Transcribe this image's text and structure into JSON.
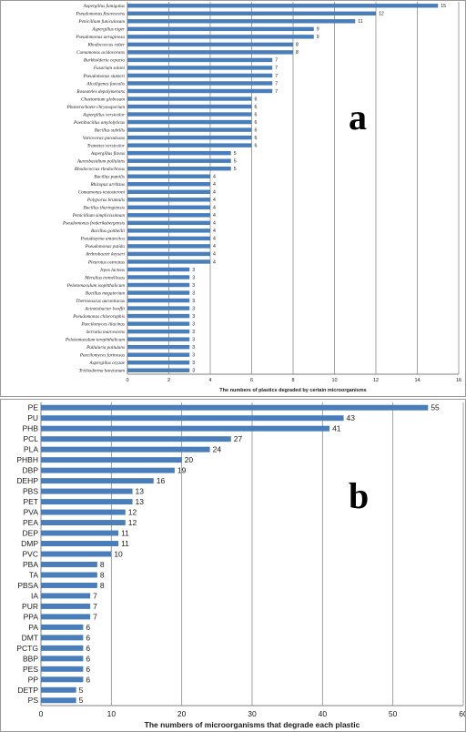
{
  "panel_labels": {
    "a": "a",
    "b": "b"
  },
  "chart_data": [
    {
      "type": "bar",
      "orientation": "horizontal",
      "panel": "a",
      "categories": [
        "Aspergillus fumigatus",
        "Pseudomonas fluorescens",
        "Penicillium funiculosum",
        "Aspergillus niger",
        "Pseudomonas aeruginosa",
        "Rhodococcus ruber",
        "Comamonas acidovorans",
        "Burkholderia cepacia",
        "Fusarium solani",
        "Pseudomonas stutzeri",
        "Alcaligenes faecalis",
        "Roseateles depolymerans",
        "Chaetomium globosum",
        "Phanerochaete chrysosporium",
        "Aspergillus versicolor",
        "Paenibacillus amylolyticus",
        "Bacillus subtilis",
        "Variovorax paradoxus",
        "Trametes versicolor",
        "Aspergillus flavus",
        "Aureobasidium pullulans",
        "Rhodococcus rhodochrous",
        "Bacillus pumilis",
        "Rhizopus arrhizus",
        "Comamonas testosteroni",
        "Polyporus brumalis",
        "Bacillus thuringiensis",
        "Penicillium simplicissimum",
        "Pseudomonas frederiksbergensis",
        "Bacillus gottheilii",
        "Pseudozyma antarctica",
        "Pseudomonas putida",
        "Arthrobacter keyseri",
        "Pleurotus ostreatus",
        "Irpex lacteus",
        "Merulius tremellosus",
        "Pelotomaculum isophthalicum",
        "Bacillus megaterium",
        "Thermoascus aurantiacus",
        "Acinetobacter lwoffii",
        "Pseudomonas chlororaphis",
        "Paecilomyces lilacinus",
        "Serratia marcescens",
        "Pelotomaculum terephthalicum",
        "Pullularia pullulans",
        "Paecilomyces farinosus",
        "Aspergillus oryzae",
        "Trichoderma harzianum"
      ],
      "values": [
        15,
        12,
        11,
        9,
        9,
        8,
        8,
        7,
        7,
        7,
        7,
        7,
        6,
        6,
        6,
        6,
        6,
        6,
        6,
        5,
        5,
        5,
        4,
        4,
        4,
        4,
        4,
        4,
        4,
        4,
        4,
        4,
        4,
        4,
        3,
        3,
        3,
        3,
        3,
        3,
        3,
        3,
        3,
        3,
        3,
        3,
        3,
        3
      ],
      "xlabel": "The numbers of plastics degraded by certain microorganisms",
      "xticks": [
        0,
        2,
        4,
        6,
        8,
        10,
        12,
        14,
        16
      ],
      "xlim": [
        0,
        16
      ],
      "grid": true,
      "bar_color": "#4a7ebb"
    },
    {
      "type": "bar",
      "orientation": "horizontal",
      "panel": "b",
      "categories": [
        "PE",
        "PU",
        "PHB",
        "PCL",
        "PLA",
        "PHBH",
        "DBP",
        "DEHP",
        "PBS",
        "PET",
        "PVA",
        "PEA",
        "DEP",
        "DMP",
        "PVC",
        "PBA",
        "TA",
        "PBSA",
        "IA",
        "PUR",
        "PPA",
        "PA",
        "DMT",
        "PCTG",
        "BBP",
        "PES",
        "PP",
        "DETP",
        "PS"
      ],
      "values": [
        55,
        43,
        41,
        27,
        24,
        20,
        19,
        16,
        13,
        13,
        12,
        12,
        11,
        11,
        10,
        8,
        8,
        8,
        7,
        7,
        7,
        6,
        6,
        6,
        6,
        6,
        6,
        5,
        5
      ],
      "xlabel": "The numbers of microorganisms that degrade each plastic",
      "xticks": [
        0,
        10,
        20,
        30,
        40,
        50,
        60
      ],
      "xlim": [
        0,
        60
      ],
      "grid": true,
      "bar_color": "#4a7ebb"
    }
  ]
}
